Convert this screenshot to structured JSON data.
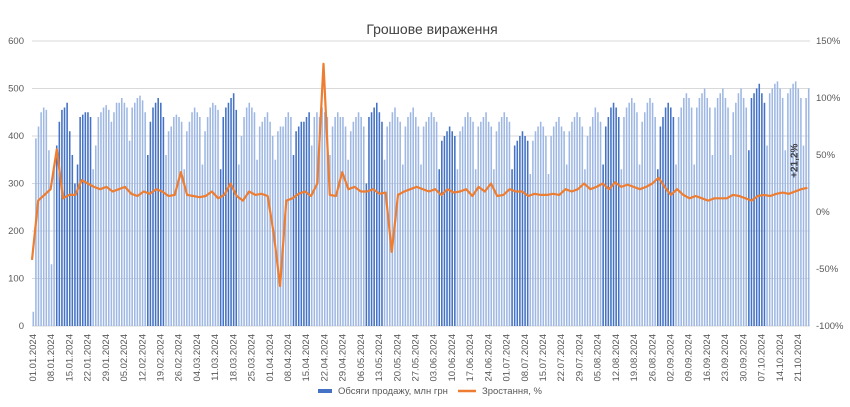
{
  "chart_data": {
    "type": "bar+line",
    "title": "Грошове вираження",
    "y_left": {
      "min": 0,
      "max": 600,
      "step": 100,
      "tick_labels": [
        "0",
        "100",
        "200",
        "300",
        "400",
        "500",
        "600"
      ]
    },
    "y_right": {
      "min": -100,
      "max": 150,
      "step": 50,
      "tick_labels": [
        "-100%",
        "-50%",
        "0%",
        "50%",
        "100%",
        "150%"
      ]
    },
    "grid": true,
    "legend_position": "bottom",
    "series": [
      {
        "name": "Обсяги продажу, млн грн",
        "type": "bar",
        "color": "#4472c4",
        "axis": "left"
      },
      {
        "name": "Зростання, %",
        "type": "line",
        "color": "#ed7d31",
        "axis": "right"
      }
    ],
    "x_tick_labels": [
      "01.01.2024",
      "08.01.2024",
      "15.01.2024",
      "22.01.2024",
      "29.01.2024",
      "05.02.2024",
      "12.02.2024",
      "19.02.2024",
      "26.02.2024",
      "04.03.2024",
      "11.03.2024",
      "18.03.2024",
      "25.03.2024",
      "01.04.2024",
      "08.04.2024",
      "15.04.2024",
      "22.04.2024",
      "29.04.2024",
      "06.05.2024",
      "13.05.2024",
      "20.05.2024",
      "27.05.2024",
      "03.06.2024",
      "10.06.2024",
      "17.06.2024",
      "24.06.2024",
      "01.07.2024",
      "08.07.2024",
      "15.07.2024",
      "22.07.2024",
      "29.07.2024",
      "05.08.2024",
      "12.08.2024",
      "19.08.2024",
      "26.08.2024",
      "02.09.2024",
      "09.09.2024",
      "16.09.2024",
      "23.09.2024",
      "30.09.2024",
      "07.10.2024",
      "14.10.2024",
      "21.10.2024"
    ],
    "daily_sales_mln": [
      [
        30,
        395,
        420,
        450,
        460,
        455,
        370,
        130,
        330
      ],
      [
        380,
        430,
        455,
        460,
        470,
        410,
        360
      ],
      [
        300,
        340,
        440,
        445,
        450,
        450,
        440
      ],
      [
        330,
        380,
        440,
        450,
        460,
        465,
        455
      ],
      [
        430,
        450,
        470,
        470,
        480,
        470,
        460
      ],
      [
        390,
        460,
        470,
        480,
        485,
        475,
        450
      ],
      [
        360,
        430,
        460,
        470,
        480,
        470,
        440
      ],
      [
        360,
        410,
        420,
        440,
        445,
        440,
        430
      ],
      [
        330,
        410,
        430,
        450,
        460,
        450,
        440
      ],
      [
        340,
        410,
        440,
        460,
        470,
        465,
        455
      ],
      [
        330,
        440,
        460,
        470,
        480,
        490,
        455
      ],
      [
        340,
        400,
        440,
        460,
        470,
        460,
        450
      ],
      [
        350,
        420,
        430,
        440,
        450,
        430,
        400
      ],
      [
        350,
        410,
        420,
        420,
        440,
        450,
        440
      ],
      [
        360,
        410,
        420,
        430,
        430,
        440,
        450
      ],
      [
        380,
        440,
        450,
        440,
        460,
        450,
        440
      ],
      [
        360,
        420,
        440,
        450,
        440,
        440,
        420
      ],
      [
        350,
        410,
        430,
        440,
        450,
        440,
        420
      ],
      [
        300,
        440,
        450,
        460,
        470,
        450,
        430
      ],
      [
        350,
        420,
        430,
        450,
        460,
        440,
        430
      ],
      [
        340,
        420,
        440,
        450,
        460,
        440,
        420
      ],
      [
        340,
        420,
        430,
        440,
        450,
        440,
        430
      ],
      [
        330,
        390,
        400,
        410,
        420,
        410,
        400
      ],
      [
        330,
        410,
        420,
        440,
        450,
        440,
        430
      ],
      [
        330,
        420,
        430,
        440,
        450,
        430,
        420
      ],
      [
        330,
        410,
        430,
        440,
        450,
        440,
        430
      ],
      [
        330,
        380,
        390,
        400,
        410,
        400,
        390
      ],
      [
        320,
        390,
        410,
        420,
        430,
        420,
        400
      ],
      [
        320,
        400,
        420,
        430,
        440,
        420,
        410
      ],
      [
        340,
        410,
        430,
        440,
        450,
        440,
        420
      ],
      [
        330,
        400,
        420,
        440,
        460,
        450,
        430
      ],
      [
        340,
        420,
        440,
        460,
        470,
        460,
        440
      ],
      [
        330,
        440,
        460,
        470,
        480,
        470,
        450
      ],
      [
        340,
        430,
        450,
        470,
        480,
        470,
        440
      ],
      [
        330,
        420,
        440,
        460,
        470,
        460,
        440
      ],
      [
        340,
        440,
        460,
        480,
        490,
        480,
        460
      ],
      [
        340,
        460,
        480,
        490,
        500,
        480,
        460
      ],
      [
        360,
        460,
        480,
        490,
        500,
        480,
        460
      ],
      [
        360,
        450,
        470,
        490,
        500,
        480,
        460
      ],
      [
        370,
        480,
        490,
        500,
        510,
        490,
        470
      ],
      [
        380,
        490,
        500,
        510,
        515,
        500,
        480
      ],
      [
        370,
        490,
        500,
        510,
        515,
        500,
        480
      ],
      [
        380,
        480,
        500
      ]
    ],
    "growth_pct_by_week": [
      -42,
      10,
      15,
      20,
      55,
      12,
      15,
      15,
      28,
      25,
      22,
      20,
      22,
      18,
      20,
      22,
      16,
      14,
      18,
      16,
      20,
      18,
      14,
      15,
      35,
      15,
      14,
      13,
      14,
      18,
      12,
      15,
      25,
      14,
      10,
      18,
      15,
      16,
      14,
      -20,
      -65,
      10,
      12,
      16,
      18,
      14,
      25,
      130,
      15,
      14,
      35,
      20,
      22,
      18,
      18,
      20,
      16,
      17,
      -35,
      15,
      18,
      20,
      22,
      20,
      18,
      20,
      15,
      20,
      17,
      18,
      20,
      14,
      22,
      18,
      25,
      14,
      15,
      20,
      18,
      18,
      14,
      16,
      15,
      15,
      16,
      15,
      20,
      18,
      20,
      25,
      20,
      22,
      25,
      20,
      26,
      22,
      24,
      22,
      20,
      22,
      25,
      30,
      22,
      15,
      20,
      15,
      12,
      14,
      12,
      10,
      12,
      12,
      12,
      15,
      14,
      12,
      10,
      14,
      15,
      14,
      16,
      17,
      16,
      18,
      20,
      21.2
    ],
    "dark_blocks": [
      "08.01.2024",
      "15.01.2024",
      "12.02.2024",
      "11.03.2024",
      "08.04.2024",
      "06.05.2024",
      "03.06.2024",
      "01.07.2024",
      "05.08.2024",
      "26.08.2024",
      "30.09.2024"
    ],
    "annotation": "+21,2%"
  }
}
